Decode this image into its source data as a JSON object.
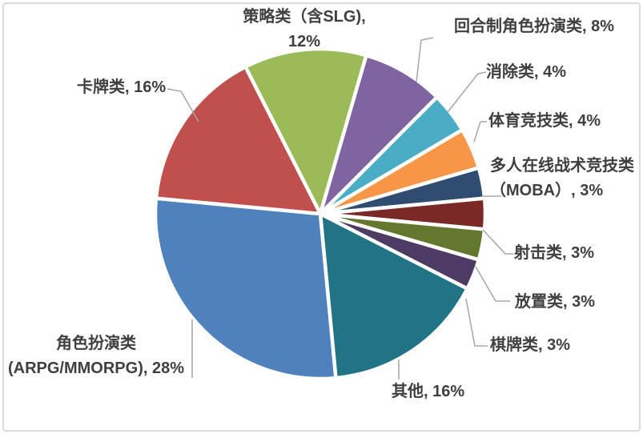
{
  "chart_data": {
    "type": "pie",
    "title": "",
    "legend_position": "none",
    "start_angle_deg": -27,
    "clockwise": true,
    "categories": [
      "策略类（含SLG)",
      "回合制角色扮演类",
      "消除类",
      "体育竞技类",
      "多人在线战术竞技类（MOBA）",
      "射击类",
      "放置类",
      "棋牌类",
      "其他",
      "角色扮演类(ARPG/MMORPG)",
      "卡牌类"
    ],
    "values": [
      12,
      8,
      4,
      4,
      3,
      3,
      3,
      3,
      16,
      28,
      16
    ],
    "slices": [
      {
        "key": "strategy",
        "name": "策略类（含SLG)",
        "pct": 12,
        "color": "#9BBB59",
        "label_line1": "策略类（含SLG),",
        "label_line2": "12%"
      },
      {
        "key": "turn-based-rpg",
        "name": "回合制角色扮演类",
        "pct": 8,
        "color": "#8064A2",
        "label": "回合制角色扮演类, 8%"
      },
      {
        "key": "elimination",
        "name": "消除类",
        "pct": 4,
        "color": "#4BACC6",
        "label": "消除类, 4%"
      },
      {
        "key": "sports",
        "name": "体育竞技类",
        "pct": 4,
        "color": "#F79646",
        "label": "体育竞技类, 4%"
      },
      {
        "key": "moba",
        "name": "多人在线战术竞技类（MOBA）",
        "pct": 3,
        "color": "#2E4D71",
        "label_line1": "多人在线战术竞技类",
        "label_line2": "（MOBA）, 3%"
      },
      {
        "key": "shooter",
        "name": "射击类",
        "pct": 3,
        "color": "#7B2926",
        "label": "射击类, 3%"
      },
      {
        "key": "idle",
        "name": "放置类",
        "pct": 3,
        "color": "#63772F",
        "label": "放置类, 3%"
      },
      {
        "key": "board-card",
        "name": "棋牌类",
        "pct": 3,
        "color": "#4D3B63",
        "label": "棋牌类, 3%"
      },
      {
        "key": "other",
        "name": "其他",
        "pct": 16,
        "color": "#207485",
        "label": "其他, 16%"
      },
      {
        "key": "rpg",
        "name": "角色扮演类(ARPG/MMORPG)",
        "pct": 28,
        "color": "#4F81BD",
        "label_line1": "角色扮演类",
        "label_line2": "(ARPG/MMORPG), 28%"
      },
      {
        "key": "card",
        "name": "卡牌类",
        "pct": 16,
        "color": "#C0504D",
        "label": "卡牌类, 16%"
      }
    ],
    "label_text_color": "#3F3F3F",
    "leader_line_color": "#A6A6A6",
    "slice_border_color": "#FFFFFF"
  }
}
